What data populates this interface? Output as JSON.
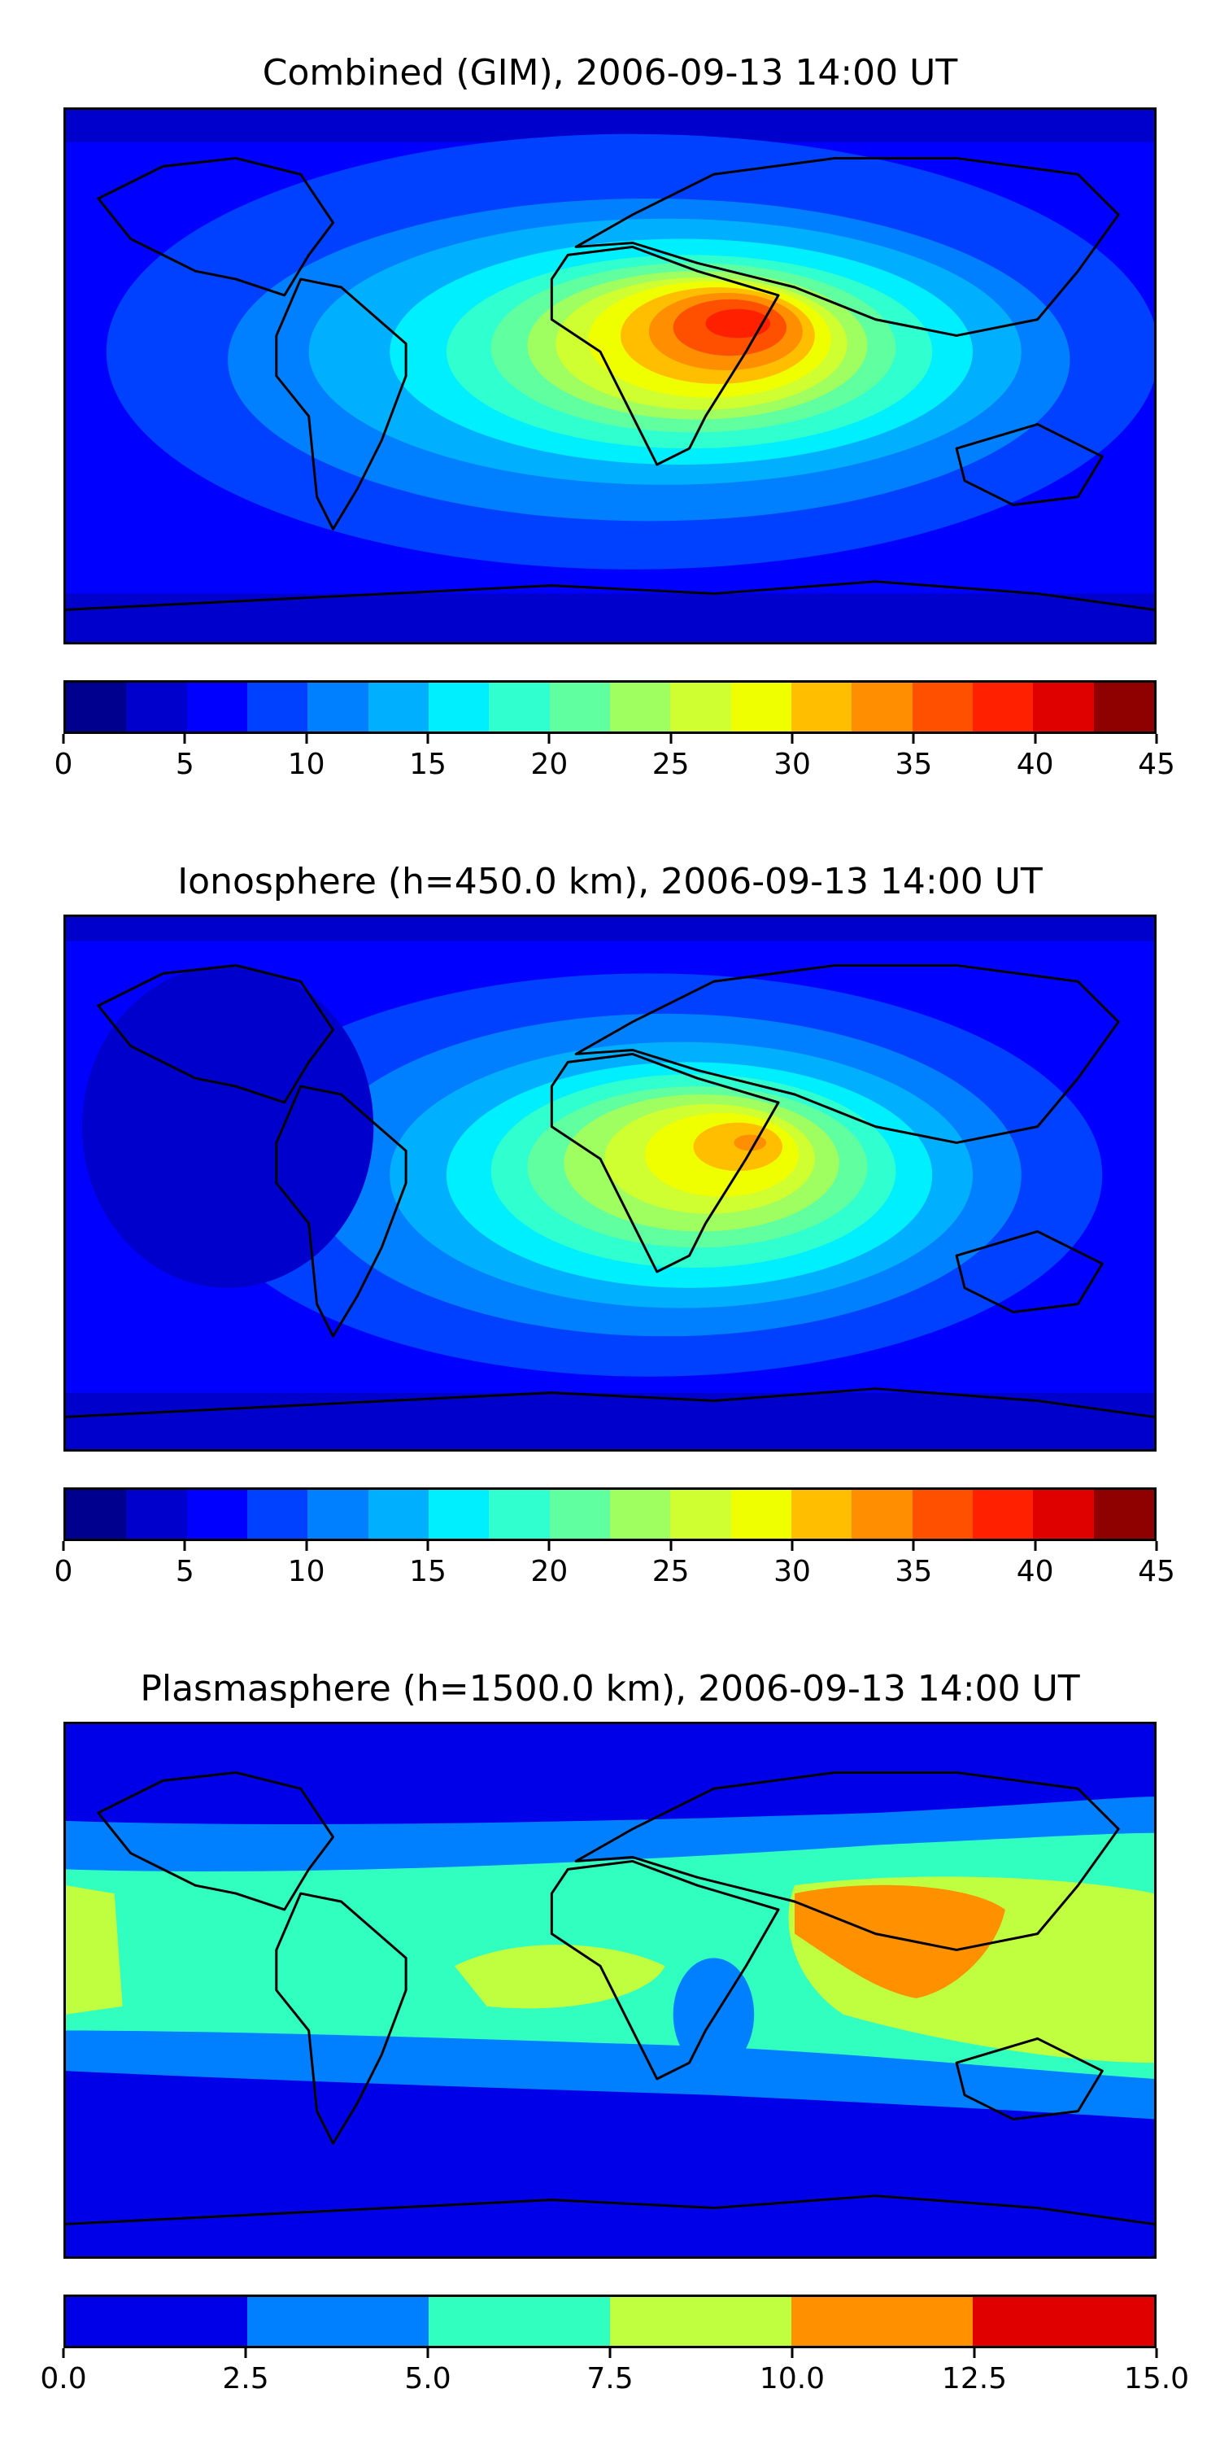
{
  "panels": [
    {
      "title": "Combined (GIM), 2006-09-13 14:00 UT",
      "colorbar": {
        "colors": [
          "#00008f",
          "#0000cc",
          "#0000ff",
          "#0040ff",
          "#0080ff",
          "#00b0ff",
          "#00efff",
          "#30ffcf",
          "#60ff9f",
          "#9fff60",
          "#cfff30",
          "#f0ff00",
          "#ffbf00",
          "#ff8f00",
          "#ff5000",
          "#ff2000",
          "#df0000",
          "#8f0000"
        ],
        "tick_labels": [
          "0",
          "5",
          "10",
          "15",
          "20",
          "25",
          "30",
          "35",
          "40",
          "45"
        ]
      }
    },
    {
      "title": "Ionosphere  (h=450.0 km), 2006-09-13 14:00 UT",
      "colorbar": {
        "colors": [
          "#00008f",
          "#0000cc",
          "#0000ff",
          "#0040ff",
          "#0080ff",
          "#00b0ff",
          "#00efff",
          "#30ffcf",
          "#60ff9f",
          "#9fff60",
          "#cfff30",
          "#f0ff00",
          "#ffbf00",
          "#ff8f00",
          "#ff5000",
          "#ff2000",
          "#df0000",
          "#8f0000"
        ],
        "tick_labels": [
          "0",
          "5",
          "10",
          "15",
          "20",
          "25",
          "30",
          "35",
          "40",
          "45"
        ]
      }
    },
    {
      "title": "Plasmasphere (h=1500.0 km), 2006-09-13 14:00 UT",
      "colorbar": {
        "colors": [
          "#0000e8",
          "#0080ff",
          "#30ffc0",
          "#c0ff40",
          "#ff9000",
          "#e00000"
        ],
        "tick_labels": [
          "0.0",
          "2.5",
          "5.0",
          "7.5",
          "10.0",
          "12.5",
          "15.0"
        ]
      }
    }
  ]
}
